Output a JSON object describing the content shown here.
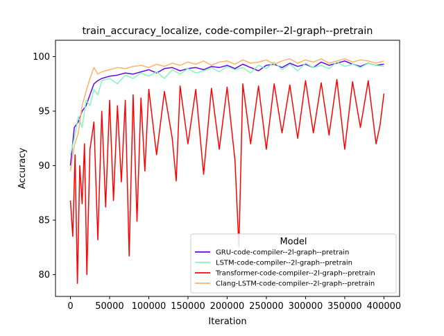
{
  "chart_data": {
    "type": "line",
    "title": "train_accuracy_localize, code-compiler--2l-graph--pretrain",
    "xlabel": "Iteration",
    "ylabel": "Accuracy",
    "xlim": [
      -19000,
      420000
    ],
    "ylim": [
      78,
      101.5
    ],
    "xticks": [
      0,
      50000,
      100000,
      150000,
      200000,
      250000,
      300000,
      350000,
      400000
    ],
    "xtick_labels": [
      "0",
      "50000",
      "100000",
      "150000",
      "200000",
      "250000",
      "300000",
      "350000",
      "400000"
    ],
    "yticks": [
      80,
      85,
      90,
      95,
      100
    ],
    "ytick_labels": [
      "80",
      "85",
      "90",
      "95",
      "100"
    ],
    "grid": false,
    "legend": {
      "title": "Model",
      "placement": "lower-right"
    },
    "series": [
      {
        "name": "GRU-code-compiler--2l-graph--pretrain",
        "color": "#6a00f4",
        "x": [
          0,
          5000,
          10000,
          15000,
          20000,
          25000,
          30000,
          35000,
          40000,
          50000,
          60000,
          70000,
          80000,
          90000,
          100000,
          110000,
          120000,
          130000,
          140000,
          150000,
          160000,
          170000,
          180000,
          190000,
          200000,
          210000,
          220000,
          230000,
          240000,
          250000,
          260000,
          270000,
          280000,
          290000,
          300000,
          310000,
          320000,
          330000,
          340000,
          350000,
          360000,
          370000,
          380000,
          390000,
          400000
        ],
        "y": [
          90.0,
          93.5,
          94.0,
          95.0,
          95.5,
          96.5,
          97.5,
          97.8,
          98.0,
          98.2,
          98.3,
          98.5,
          98.4,
          98.6,
          98.8,
          98.5,
          98.9,
          99.0,
          98.7,
          98.9,
          99.0,
          98.8,
          99.1,
          99.0,
          99.2,
          98.9,
          99.3,
          99.0,
          98.7,
          99.2,
          99.3,
          99.0,
          99.4,
          99.1,
          99.3,
          99.0,
          99.5,
          99.2,
          99.4,
          99.6,
          99.3,
          99.1,
          99.4,
          99.2,
          99.3
        ]
      },
      {
        "name": "LSTM-code-compiler--2l-graph--pretrain",
        "color": "#82f9b8",
        "x": [
          0,
          5000,
          10000,
          15000,
          20000,
          25000,
          30000,
          35000,
          40000,
          50000,
          60000,
          70000,
          80000,
          90000,
          100000,
          110000,
          120000,
          130000,
          140000,
          150000,
          160000,
          170000,
          180000,
          190000,
          200000,
          210000,
          220000,
          230000,
          240000,
          250000,
          260000,
          270000,
          280000,
          290000,
          300000,
          310000,
          320000,
          330000,
          340000,
          350000,
          360000,
          370000,
          380000,
          390000,
          400000
        ],
        "y": [
          91.0,
          92.5,
          94.5,
          93.5,
          96.0,
          95.5,
          97.0,
          96.5,
          97.8,
          98.0,
          97.5,
          98.3,
          98.0,
          98.5,
          98.2,
          98.6,
          98.0,
          98.8,
          98.4,
          98.9,
          98.5,
          98.7,
          99.0,
          98.6,
          99.1,
          98.8,
          99.0,
          98.5,
          99.2,
          98.9,
          99.5,
          98.8,
          99.3,
          98.7,
          99.4,
          99.0,
          99.2,
          98.9,
          99.5,
          99.1,
          99.3,
          99.0,
          99.4,
          99.2,
          99.1
        ]
      },
      {
        "name": "Transformer-code-compiler--2l-graph--pretrain",
        "color": "#ff0000",
        "x": [
          0,
          3000,
          6000,
          9000,
          12000,
          15000,
          18000,
          21000,
          25000,
          30000,
          35000,
          40000,
          45000,
          50000,
          55000,
          60000,
          65000,
          70000,
          75000,
          80000,
          85000,
          90000,
          95000,
          100000,
          110000,
          120000,
          130000,
          135000,
          140000,
          150000,
          160000,
          170000,
          180000,
          190000,
          200000,
          210000,
          215000,
          220000,
          230000,
          240000,
          250000,
          260000,
          270000,
          280000,
          290000,
          300000,
          310000,
          320000,
          330000,
          340000,
          350000,
          360000,
          370000,
          380000,
          390000,
          395000,
          400000
        ],
        "y": [
          86.8,
          83.5,
          91.0,
          79.2,
          90.0,
          86.5,
          92.0,
          80.0,
          91.5,
          94.0,
          83.2,
          95.0,
          86.2,
          96.0,
          86.8,
          95.5,
          88.5,
          96.0,
          81.7,
          96.5,
          84.9,
          96.2,
          89.5,
          97.0,
          91.0,
          96.8,
          92.5,
          88.6,
          97.3,
          92.0,
          97.0,
          89.2,
          97.1,
          91.5,
          97.2,
          90.5,
          82.5,
          97.5,
          92.0,
          97.3,
          91.5,
          97.5,
          93.0,
          97.4,
          92.5,
          97.8,
          93.0,
          97.6,
          92.8,
          97.9,
          91.5,
          97.7,
          93.5,
          97.8,
          92.0,
          93.7,
          96.6
        ]
      },
      {
        "name": "Clang-LSTM-code-compiler--2l-graph--pretrain",
        "color": "#fdb36a",
        "x": [
          0,
          5000,
          10000,
          15000,
          20000,
          25000,
          30000,
          35000,
          40000,
          50000,
          60000,
          70000,
          80000,
          90000,
          100000,
          110000,
          120000,
          130000,
          140000,
          150000,
          160000,
          170000,
          180000,
          190000,
          200000,
          210000,
          220000,
          230000,
          240000,
          250000,
          260000,
          270000,
          280000,
          290000,
          300000,
          310000,
          320000,
          330000,
          340000,
          350000,
          360000,
          370000,
          380000,
          390000,
          400000
        ],
        "y": [
          89.5,
          91.8,
          93.0,
          95.5,
          96.8,
          98.0,
          99.0,
          98.4,
          98.6,
          98.8,
          99.0,
          98.9,
          99.1,
          99.2,
          99.0,
          99.3,
          99.1,
          99.4,
          99.2,
          99.5,
          99.3,
          99.6,
          99.2,
          99.5,
          99.6,
          99.3,
          99.7,
          99.4,
          99.5,
          99.7,
          99.3,
          99.6,
          99.8,
          99.4,
          99.7,
          99.5,
          99.8,
          99.4,
          99.6,
          99.8,
          99.5,
          99.7,
          99.6,
          99.4,
          99.6
        ]
      }
    ]
  }
}
